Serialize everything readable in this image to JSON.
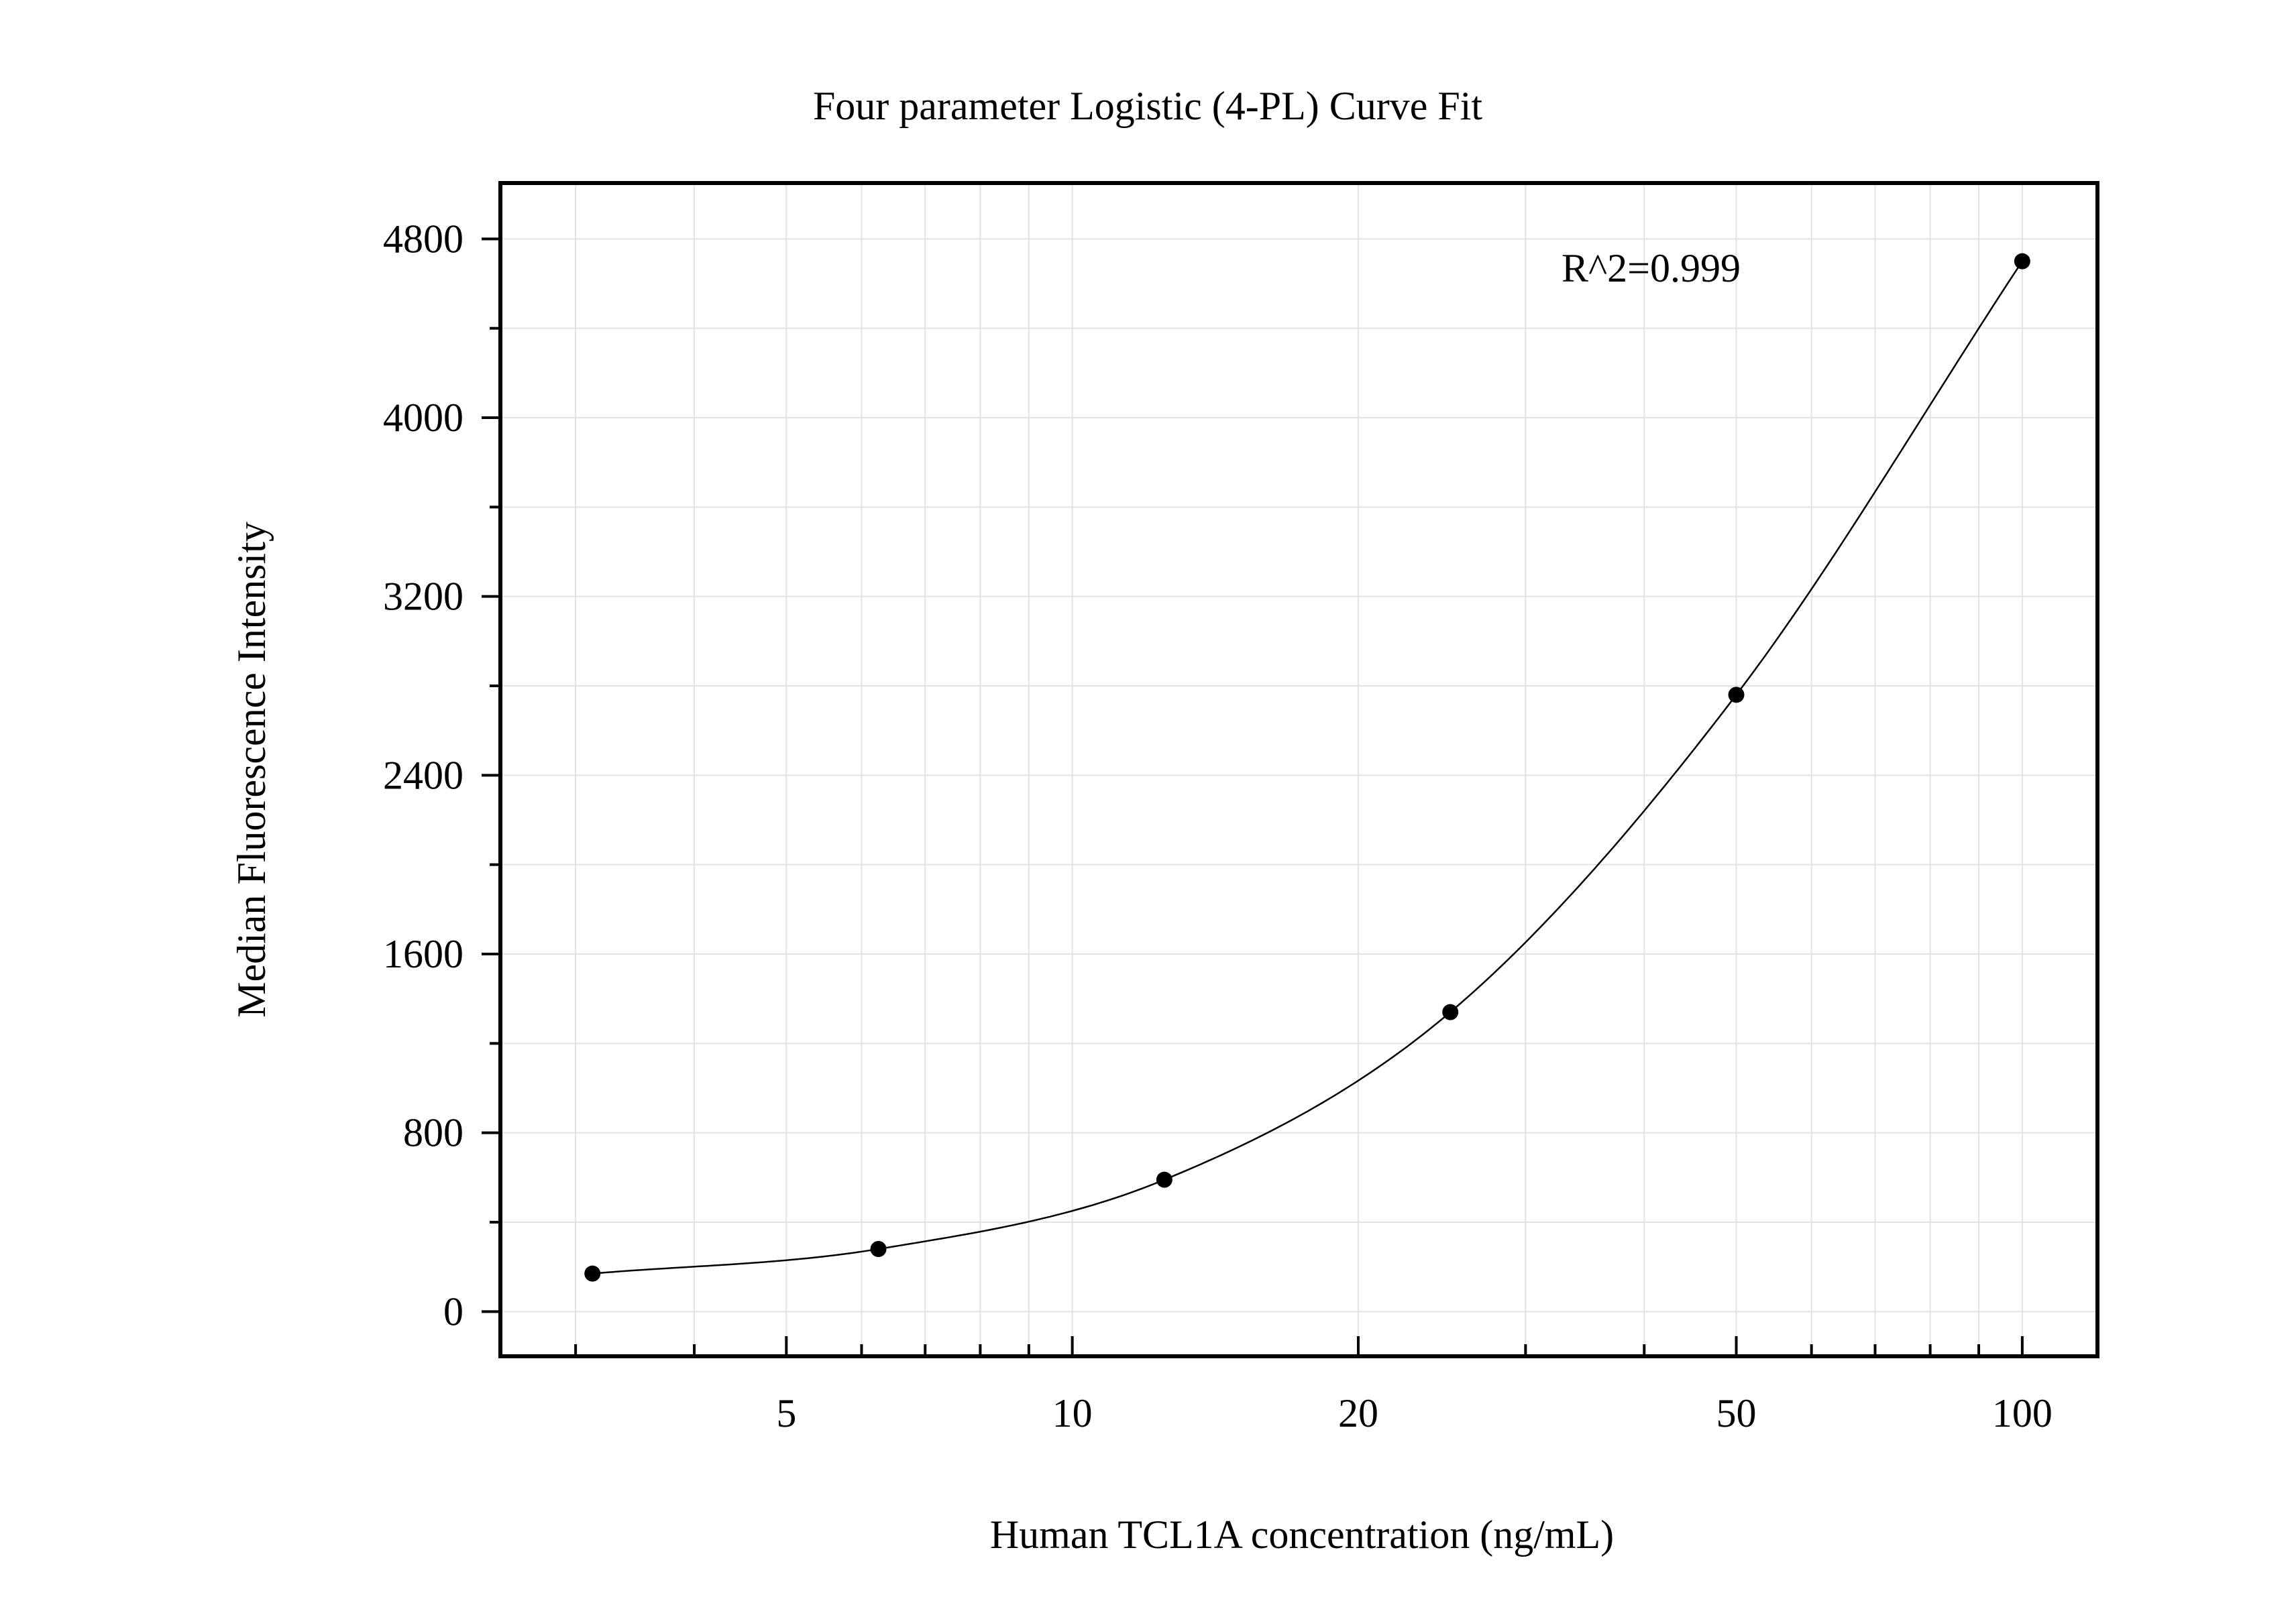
{
  "chart_data": {
    "type": "scatter",
    "title": "Four parameter Logistic (4-PL) Curve Fit",
    "xlabel": "Human TCL1A concentration (ng/mL)",
    "ylabel": "Median Fluorescence Intensity",
    "x_scale": "log",
    "xlim": [
      2.5,
      120
    ],
    "ylim": [
      -200,
      5050
    ],
    "x_ticks": [
      5,
      10,
      20,
      50,
      100
    ],
    "x_tick_labels": [
      "5",
      "10",
      "20",
      "50",
      "100"
    ],
    "y_ticks": [
      0,
      800,
      1600,
      2400,
      3200,
      4000,
      4800
    ],
    "y_tick_labels": [
      "0",
      "800",
      "1600",
      "2400",
      "3200",
      "4000",
      "4800"
    ],
    "grid": true,
    "legend": "none",
    "annotation": "R^2=0.999",
    "series": [
      {
        "x": [
          3.125,
          6.25,
          12.5,
          25,
          50,
          100
        ],
        "y": [
          170,
          280,
          590,
          1340,
          2760,
          4700
        ],
        "marker": "circle",
        "fit": "4-PL curve"
      }
    ]
  }
}
